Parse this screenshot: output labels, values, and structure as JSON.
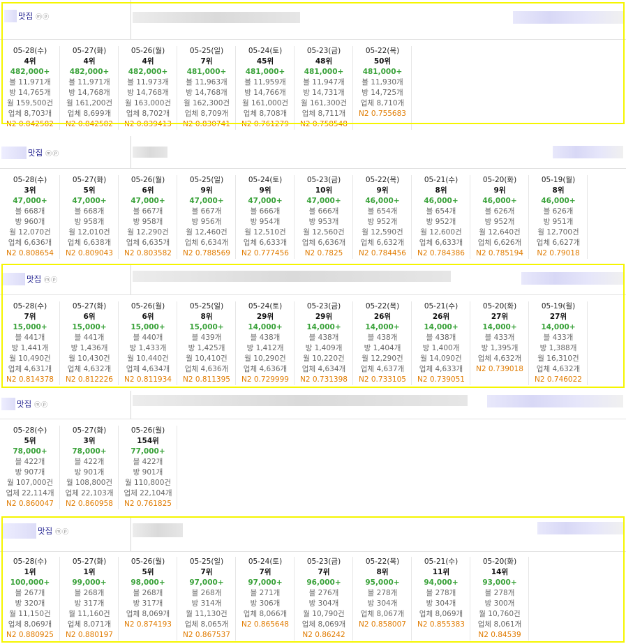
{
  "sections": [
    {
      "title": "맛집",
      "icons": "ⓜⓟ",
      "days": [
        {
          "date": "05-28(수)",
          "rank": "4위",
          "price": "482,000+",
          "b": "블 11,971개",
          "bang": "방 14,765개",
          "month": "월 159,500건",
          "biz": "업체 8,703개",
          "n2": "N2 0.842582"
        },
        {
          "date": "05-27(화)",
          "rank": "4위",
          "price": "482,000+",
          "b": "블 11,971개",
          "bang": "방 14,768개",
          "month": "월 161,200건",
          "biz": "업체 8,699개",
          "n2": "N2 0.842582"
        },
        {
          "date": "05-26(월)",
          "rank": "4위",
          "price": "482,000+",
          "b": "블 11,973개",
          "bang": "방 14,768개",
          "month": "월 163,000건",
          "biz": "업체 8,702개",
          "n2": "N2 0.839413"
        },
        {
          "date": "05-25(일)",
          "rank": "7위",
          "price": "481,000+",
          "b": "블 11,963개",
          "bang": "방 14,768개",
          "month": "월 162,300건",
          "biz": "업체 8,709개",
          "n2": "N2 0.830741"
        },
        {
          "date": "05-24(토)",
          "rank": "45위",
          "price": "481,000+",
          "b": "블 11,959개",
          "bang": "방 14,766개",
          "month": "월 161,000건",
          "biz": "업체 8,708개",
          "n2": "N2 0.761279"
        },
        {
          "date": "05-23(금)",
          "rank": "48위",
          "price": "481,000+",
          "b": "블 11,947개",
          "bang": "방 14,731개",
          "month": "월 161,300건",
          "biz": "업체 8,711개",
          "n2": "N2 0.758548"
        },
        {
          "date": "05-22(목)",
          "rank": "50위",
          "price": "481,000+",
          "b": "블 11,930개",
          "bang": "방 14,725개",
          "month": "업체 8,710개",
          "biz": "",
          "n2": "N2 0.755683"
        }
      ]
    },
    {
      "title": "맛집",
      "icons": "ⓜⓟ",
      "days": [
        {
          "date": "05-28(수)",
          "rank": "3위",
          "price": "47,000+",
          "b": "블 668개",
          "bang": "방 960개",
          "month": "월 12,070건",
          "biz": "업체 6,636개",
          "n2": "N2 0.808654"
        },
        {
          "date": "05-27(화)",
          "rank": "5위",
          "price": "47,000+",
          "b": "블 668개",
          "bang": "방 958개",
          "month": "월 12,010건",
          "biz": "업체 6,638개",
          "n2": "N2 0.809043"
        },
        {
          "date": "05-26(월)",
          "rank": "6위",
          "price": "47,000+",
          "b": "블 667개",
          "bang": "방 958개",
          "month": "월 12,290건",
          "biz": "업체 6,635개",
          "n2": "N2 0.803582"
        },
        {
          "date": "05-25(일)",
          "rank": "9위",
          "price": "47,000+",
          "b": "블 667개",
          "bang": "방 956개",
          "month": "월 12,460건",
          "biz": "업체 6,634개",
          "n2": "N2 0.788569"
        },
        {
          "date": "05-24(토)",
          "rank": "9위",
          "price": "47,000+",
          "b": "블 666개",
          "bang": "방 954개",
          "month": "월 12,510건",
          "biz": "업체 6,633개",
          "n2": "N2 0.777456"
        },
        {
          "date": "05-23(금)",
          "rank": "10위",
          "price": "47,000+",
          "b": "블 666개",
          "bang": "방 953개",
          "month": "월 12,560건",
          "biz": "업체 6,636개",
          "n2": "N2 0.7825"
        },
        {
          "date": "05-22(목)",
          "rank": "9위",
          "price": "46,000+",
          "b": "블 654개",
          "bang": "방 952개",
          "month": "월 12,590건",
          "biz": "업체 6,632개",
          "n2": "N2 0.784456"
        },
        {
          "date": "05-21(수)",
          "rank": "8위",
          "price": "46,000+",
          "b": "블 654개",
          "bang": "방 952개",
          "month": "월 12,600건",
          "biz": "업체 6,633개",
          "n2": "N2 0.784386"
        },
        {
          "date": "05-20(화)",
          "rank": "9위",
          "price": "46,000+",
          "b": "블 626개",
          "bang": "방 952개",
          "month": "월 12,640건",
          "biz": "업체 6,626개",
          "n2": "N2 0.785194"
        },
        {
          "date": "05-19(월)",
          "rank": "8위",
          "price": "46,000+",
          "b": "블 626개",
          "bang": "방 951개",
          "month": "월 12,700건",
          "biz": "업체 6,627개",
          "n2": "N2 0.79018"
        }
      ]
    },
    {
      "title": "맛집",
      "icons": "ⓜⓟ",
      "days": [
        {
          "date": "05-28(수)",
          "rank": "7위",
          "price": "15,000+",
          "b": "블 441개",
          "bang": "방 1,441개",
          "month": "월 10,490건",
          "biz": "업체 4,631개",
          "n2": "N2 0.814378"
        },
        {
          "date": "05-27(화)",
          "rank": "6위",
          "price": "15,000+",
          "b": "블 441개",
          "bang": "방 1,436개",
          "month": "월 10,430건",
          "biz": "업체 4,632개",
          "n2": "N2 0.812226"
        },
        {
          "date": "05-26(월)",
          "rank": "6위",
          "price": "15,000+",
          "b": "블 440개",
          "bang": "방 1,433개",
          "month": "월 10,440건",
          "biz": "업체 4,634개",
          "n2": "N2 0.811934"
        },
        {
          "date": "05-25(일)",
          "rank": "8위",
          "price": "15,000+",
          "b": "블 439개",
          "bang": "방 1,425개",
          "month": "월 10,410건",
          "biz": "업체 4,636개",
          "n2": "N2 0.811395"
        },
        {
          "date": "05-24(토)",
          "rank": "29위",
          "price": "14,000+",
          "b": "블 438개",
          "bang": "방 1,412개",
          "month": "월 10,290건",
          "biz": "업체 4,636개",
          "n2": "N2 0.729999"
        },
        {
          "date": "05-23(금)",
          "rank": "29위",
          "price": "14,000+",
          "b": "블 438개",
          "bang": "방 1,409개",
          "month": "월 10,220건",
          "biz": "업체 4,634개",
          "n2": "N2 0.731398"
        },
        {
          "date": "05-22(목)",
          "rank": "26위",
          "price": "14,000+",
          "b": "블 438개",
          "bang": "방 1,404개",
          "month": "월 12,290건",
          "biz": "업체 4,637개",
          "n2": "N2 0.733105"
        },
        {
          "date": "05-21(수)",
          "rank": "26위",
          "price": "14,000+",
          "b": "블 438개",
          "bang": "방 1,400개",
          "month": "월 14,090건",
          "biz": "업체 4,633개",
          "n2": "N2 0.739051"
        },
        {
          "date": "05-20(화)",
          "rank": "27위",
          "price": "14,000+",
          "b": "블 433개",
          "bang": "방 1,395개",
          "month": "업체 4,632개",
          "biz": "",
          "n2": "N2 0.739018"
        },
        {
          "date": "05-19(월)",
          "rank": "27위",
          "price": "14,000+",
          "b": "블 433개",
          "bang": "방 1,388개",
          "month": "월 16,310건",
          "biz": "업체 4,632개",
          "n2": "N2 0.746022"
        }
      ]
    },
    {
      "title": "맛집",
      "icons": "ⓜⓟ",
      "days": [
        {
          "date": "05-28(수)",
          "rank": "5위",
          "price": "78,000+",
          "b": "블 422개",
          "bang": "방 907개",
          "month": "월 107,000건",
          "biz": "업체 22,114개",
          "n2": "N2 0.860047"
        },
        {
          "date": "05-27(화)",
          "rank": "3위",
          "price": "78,000+",
          "b": "블 422개",
          "bang": "방 901개",
          "month": "월 108,800건",
          "biz": "업체 22,103개",
          "n2": "N2 0.860958"
        },
        {
          "date": "05-26(월)",
          "rank": "154위",
          "price": "77,000+",
          "b": "블 422개",
          "bang": "방 901개",
          "month": "월 110,800건",
          "biz": "업체 22,104개",
          "n2": "N2 0.761825"
        }
      ]
    },
    {
      "title": "맛집",
      "icons": "ⓜⓟ",
      "days": [
        {
          "date": "05-28(수)",
          "rank": "1위",
          "price": "100,000+",
          "b": "블 267개",
          "bang": "방 320개",
          "month": "월 11,150건",
          "biz": "업체 8,069개",
          "n2": "N2 0.880925"
        },
        {
          "date": "05-27(화)",
          "rank": "1위",
          "price": "99,000+",
          "b": "블 268개",
          "bang": "방 317개",
          "month": "월 11,160건",
          "biz": "업체 8,071개",
          "n2": "N2 0.880197"
        },
        {
          "date": "05-26(월)",
          "rank": "5위",
          "price": "98,000+",
          "b": "블 268개",
          "bang": "방 317개",
          "month": "업체 8,069개",
          "biz": "",
          "n2": "N2 0.874193"
        },
        {
          "date": "05-25(일)",
          "rank": "7위",
          "price": "97,000+",
          "b": "블 268개",
          "bang": "방 314개",
          "month": "월 11,130건",
          "biz": "업체 8,065개",
          "n2": "N2 0.867537"
        },
        {
          "date": "05-24(토)",
          "rank": "7위",
          "price": "97,000+",
          "b": "블 271개",
          "bang": "방 306개",
          "month": "업체 8,066개",
          "biz": "",
          "n2": "N2 0.865648"
        },
        {
          "date": "05-23(금)",
          "rank": "7위",
          "price": "96,000+",
          "b": "블 276개",
          "bang": "방 304개",
          "month": "월 10,790건",
          "biz": "업체 8,069개",
          "n2": "N2 0.86242"
        },
        {
          "date": "05-22(목)",
          "rank": "8위",
          "price": "95,000+",
          "b": "블 278개",
          "bang": "방 304개",
          "month": "업체 8,067개",
          "biz": "",
          "n2": "N2 0.858007"
        },
        {
          "date": "05-21(수)",
          "rank": "11위",
          "price": "94,000+",
          "b": "블 278개",
          "bang": "방 304개",
          "month": "업체 8,069개",
          "biz": "",
          "n2": "N2 0.855383"
        },
        {
          "date": "05-20(화)",
          "rank": "14위",
          "price": "93,000+",
          "b": "블 278개",
          "bang": "방 300개",
          "month": "월 10,760건",
          "biz": "업체 8,061개",
          "n2": "N2 0.84539"
        }
      ]
    }
  ]
}
